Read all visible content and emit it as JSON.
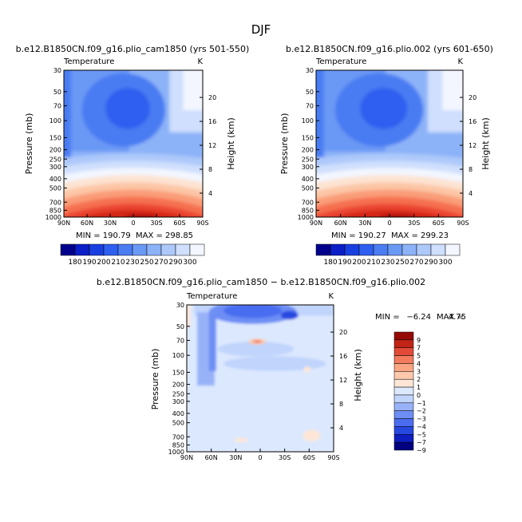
{
  "figure": {
    "title": "DJF",
    "colors": {
      "abs_scale": [
        "#00008b",
        "#0a1fc8",
        "#1a3fe0",
        "#2f5ff0",
        "#4a7cf2",
        "#6a98f5",
        "#8cb2f8",
        "#adc9fa",
        "#cfdffd",
        "#f3f6ff",
        "#fde3d2",
        "#fcc6a6",
        "#fa9c78",
        "#f57050",
        "#ea4530",
        "#d42818",
        "#aa1010",
        "#7a0000"
      ],
      "diff_scale": [
        "#000080",
        "#0e1ec0",
        "#2748e0",
        "#4a6df0",
        "#6d8ef4",
        "#98b2f8",
        "#c0d4fc",
        "#dce8fe",
        "#fde6d6",
        "#fcc9ac",
        "#fba583",
        "#f37b5e",
        "#e14b38",
        "#c22416",
        "#950a05"
      ]
    }
  },
  "chart_data": [
    {
      "type": "heatmap",
      "title": "b.e12.B1850CN.f09_g16.plio_cam1850 (yrs 501-550)",
      "subtitle_left": "Temperature",
      "subtitle_right": "K",
      "xlabel": "",
      "ylabel": "Pressure (mb)",
      "ylabel_right": "Height (km)",
      "x_ticks": [
        "90N",
        "60N",
        "30N",
        "0",
        "30S",
        "60S",
        "90S"
      ],
      "y_ticks": [
        "30",
        "50",
        "70",
        "100",
        "150",
        "200",
        "250",
        "300",
        "400",
        "500",
        "700",
        "850",
        "1000"
      ],
      "y_ticks_right": [
        "20",
        "16",
        "12",
        "8",
        "4"
      ],
      "ylim": [
        1000,
        30
      ],
      "min_label": "MIN = 190.79",
      "max_label": "MAX = 298.85",
      "min": 190.79,
      "max": 298.85
    },
    {
      "type": "heatmap",
      "title": "b.e12.B1850CN.f09_g16.plio.002 (yrs 601-650)",
      "subtitle_left": "Temperature",
      "subtitle_right": "K",
      "xlabel": "",
      "ylabel": "Pressure (mb)",
      "ylabel_right": "Height (km)",
      "x_ticks": [
        "90N",
        "60N",
        "30N",
        "0",
        "30S",
        "60S",
        "90S"
      ],
      "y_ticks": [
        "30",
        "50",
        "70",
        "100",
        "150",
        "200",
        "250",
        "300",
        "400",
        "500",
        "700",
        "850",
        "1000"
      ],
      "y_ticks_right": [
        "20",
        "16",
        "12",
        "8",
        "4"
      ],
      "ylim": [
        1000,
        30
      ],
      "min_label": "MIN = 190.27",
      "max_label": "MAX = 299.23",
      "min": 190.27,
      "max": 299.23
    },
    {
      "type": "heatmap",
      "title": "b.e12.B1850CN.f09_g16.plio_cam1850 − b.e12.B1850CN.f09_g16.plio.002",
      "subtitle_left": "Temperature",
      "subtitle_right": "K",
      "xlabel": "",
      "ylabel": "Pressure (mb)",
      "ylabel_right": "Height (km)",
      "x_ticks": [
        "90N",
        "60N",
        "30N",
        "0",
        "30S",
        "60S",
        "90S"
      ],
      "y_ticks": [
        "30",
        "50",
        "70",
        "100",
        "150",
        "200",
        "250",
        "300",
        "400",
        "500",
        "700",
        "850",
        "1000"
      ],
      "y_ticks_right": [
        "20",
        "16",
        "12",
        "8",
        "4"
      ],
      "ylim": [
        1000,
        30
      ],
      "min_label": "MIN =",
      "min_value": "−6.24",
      "max_label": "MAX =",
      "max_value": "4.75",
      "min": -6.24,
      "max": 4.75
    }
  ],
  "colorbars": {
    "absolute_labels": [
      "180",
      "190",
      "200",
      "210",
      "230",
      "250",
      "270",
      "290",
      "300"
    ],
    "difference_labels": [
      "9",
      "7",
      "5",
      "4",
      "3",
      "2",
      "1",
      "0",
      "−1",
      "−2",
      "−3",
      "−4",
      "−5",
      "−7",
      "−9"
    ]
  }
}
